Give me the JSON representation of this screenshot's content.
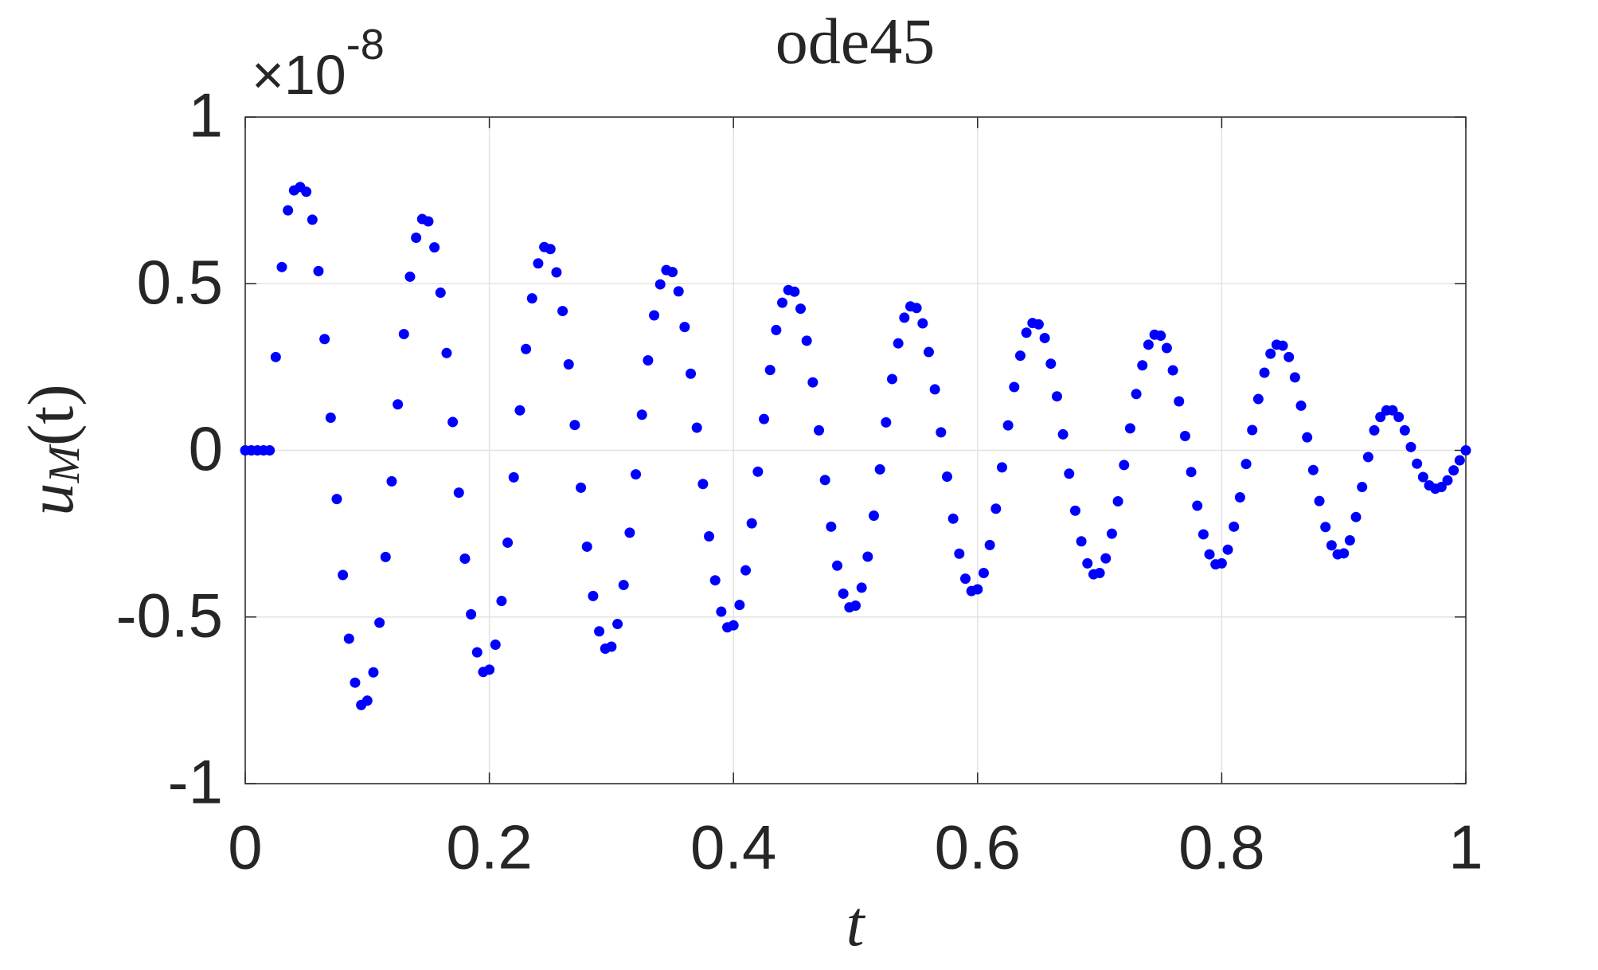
{
  "chart_data": {
    "type": "scatter",
    "title": "ode45",
    "multiplier_base": "×10",
    "multiplier_exponent": "-8",
    "xlabel": "t",
    "ylabel": {
      "base": "u",
      "sub": "M",
      "tail": "(t)"
    },
    "xlim": [
      0,
      1
    ],
    "ylim": [
      -1,
      1
    ],
    "xticks": [
      0,
      0.2,
      0.4,
      0.6,
      0.8,
      1
    ],
    "yticks": [
      -1,
      -0.5,
      0,
      0.5,
      1
    ],
    "grid": true,
    "color": "#0000ff",
    "x": [
      0,
      0.005,
      0.01,
      0.015,
      0.02,
      0.025,
      0.03,
      0.035,
      0.04,
      0.045,
      0.05,
      0.055,
      0.06,
      0.065,
      0.07,
      0.075,
      0.08,
      0.085,
      0.09,
      0.095,
      0.1,
      0.105,
      0.11,
      0.115,
      0.12,
      0.125,
      0.13,
      0.135,
      0.14,
      0.145,
      0.15,
      0.155,
      0.16,
      0.165,
      0.17,
      0.175,
      0.18,
      0.185,
      0.19,
      0.195,
      0.2,
      0.205,
      0.21,
      0.215,
      0.22,
      0.225,
      0.23,
      0.235,
      0.24,
      0.245,
      0.25,
      0.255,
      0.26,
      0.265,
      0.27,
      0.275,
      0.28,
      0.285,
      0.29,
      0.295,
      0.3,
      0.305,
      0.31,
      0.315,
      0.32,
      0.325,
      0.33,
      0.335,
      0.34,
      0.345,
      0.35,
      0.355,
      0.36,
      0.365,
      0.37,
      0.375,
      0.38,
      0.385,
      0.39,
      0.395,
      0.4,
      0.405,
      0.41,
      0.415,
      0.42,
      0.425,
      0.43,
      0.435,
      0.44,
      0.445,
      0.45,
      0.455,
      0.46,
      0.465,
      0.47,
      0.475,
      0.48,
      0.485,
      0.49,
      0.495,
      0.5,
      0.505,
      0.51,
      0.515,
      0.52,
      0.525,
      0.53,
      0.535,
      0.54,
      0.545,
      0.55,
      0.555,
      0.56,
      0.565,
      0.57,
      0.575,
      0.58,
      0.585,
      0.59,
      0.595,
      0.6,
      0.605,
      0.61,
      0.615,
      0.62,
      0.625,
      0.63,
      0.635,
      0.64,
      0.645,
      0.65,
      0.655,
      0.66,
      0.665,
      0.67,
      0.675,
      0.68,
      0.685,
      0.69,
      0.695,
      0.7,
      0.705,
      0.71,
      0.715,
      0.72,
      0.725,
      0.73,
      0.735,
      0.74,
      0.745,
      0.75,
      0.755,
      0.76,
      0.765,
      0.77,
      0.775,
      0.78,
      0.785,
      0.79,
      0.795,
      0.8,
      0.805,
      0.81,
      0.815,
      0.82,
      0.825,
      0.83,
      0.835,
      0.84,
      0.845,
      0.85,
      0.855,
      0.86,
      0.865,
      0.87,
      0.875,
      0.88,
      0.885,
      0.89,
      0.895,
      0.9,
      0.905,
      0.91,
      0.915,
      0.92,
      0.925,
      0.93,
      0.935,
      0.94,
      0.945,
      0.95,
      0.955,
      0.96,
      0.965,
      0.97,
      0.975,
      0.98,
      0.985,
      0.99,
      0.995,
      1
    ],
    "values": [
      0,
      0,
      0,
      0,
      0,
      0.28,
      0.55,
      0.72,
      0.78,
      0.79,
      0.776,
      0.692,
      0.538,
      0.334,
      0.098,
      -0.146,
      -0.374,
      -0.565,
      -0.697,
      -0.764,
      -0.751,
      -0.666,
      -0.517,
      -0.32,
      -0.093,
      0.138,
      0.349,
      0.521,
      0.638,
      0.694,
      0.687,
      0.609,
      0.473,
      0.292,
      0.085,
      -0.127,
      -0.325,
      -0.492,
      -0.606,
      -0.665,
      -0.658,
      -0.583,
      -0.452,
      -0.277,
      -0.081,
      0.12,
      0.304,
      0.456,
      0.561,
      0.61,
      0.604,
      0.534,
      0.418,
      0.258,
      0.076,
      -0.112,
      -0.289,
      -0.437,
      -0.543,
      -0.595,
      -0.589,
      -0.521,
      -0.404,
      -0.247,
      -0.072,
      0.107,
      0.27,
      0.405,
      0.498,
      0.541,
      0.535,
      0.477,
      0.37,
      0.23,
      0.068,
      -0.101,
      -0.258,
      -0.39,
      -0.484,
      -0.531,
      -0.525,
      -0.464,
      -0.36,
      -0.219,
      -0.064,
      0.094,
      0.241,
      0.361,
      0.443,
      0.481,
      0.476,
      0.425,
      0.329,
      0.204,
      0.06,
      -0.089,
      -0.229,
      -0.346,
      -0.43,
      -0.471,
      -0.466,
      -0.412,
      -0.319,
      -0.196,
      -0.057,
      0.084,
      0.214,
      0.321,
      0.398,
      0.432,
      0.427,
      0.381,
      0.295,
      0.183,
      0.054,
      -0.079,
      -0.205,
      -0.31,
      -0.385,
      -0.422,
      -0.417,
      -0.368,
      -0.284,
      -0.175,
      -0.051,
      0.075,
      0.19,
      0.284,
      0.353,
      0.382,
      0.378,
      0.337,
      0.26,
      0.162,
      0.048,
      -0.07,
      -0.181,
      -0.273,
      -0.339,
      -0.372,
      -0.368,
      -0.324,
      -0.25,
      -0.153,
      -0.044,
      0.066,
      0.169,
      0.255,
      0.317,
      0.347,
      0.344,
      0.307,
      0.24,
      0.147,
      0.043,
      -0.065,
      -0.166,
      -0.252,
      -0.312,
      -0.342,
      -0.339,
      -0.298,
      -0.229,
      -0.141,
      -0.041,
      0.061,
      0.154,
      0.233,
      0.29,
      0.317,
      0.314,
      0.28,
      0.219,
      0.134,
      0.039,
      -0.059,
      -0.152,
      -0.23,
      -0.285,
      -0.312,
      -0.309,
      -0.27,
      -0.2,
      -0.11,
      -0.02,
      0.06,
      0.1,
      0.12,
      0.12,
      0.1,
      0.06,
      0.01,
      -0.04,
      -0.08,
      -0.105,
      -0.115,
      -0.11,
      -0.09,
      -0.06,
      -0.03,
      0
    ]
  }
}
